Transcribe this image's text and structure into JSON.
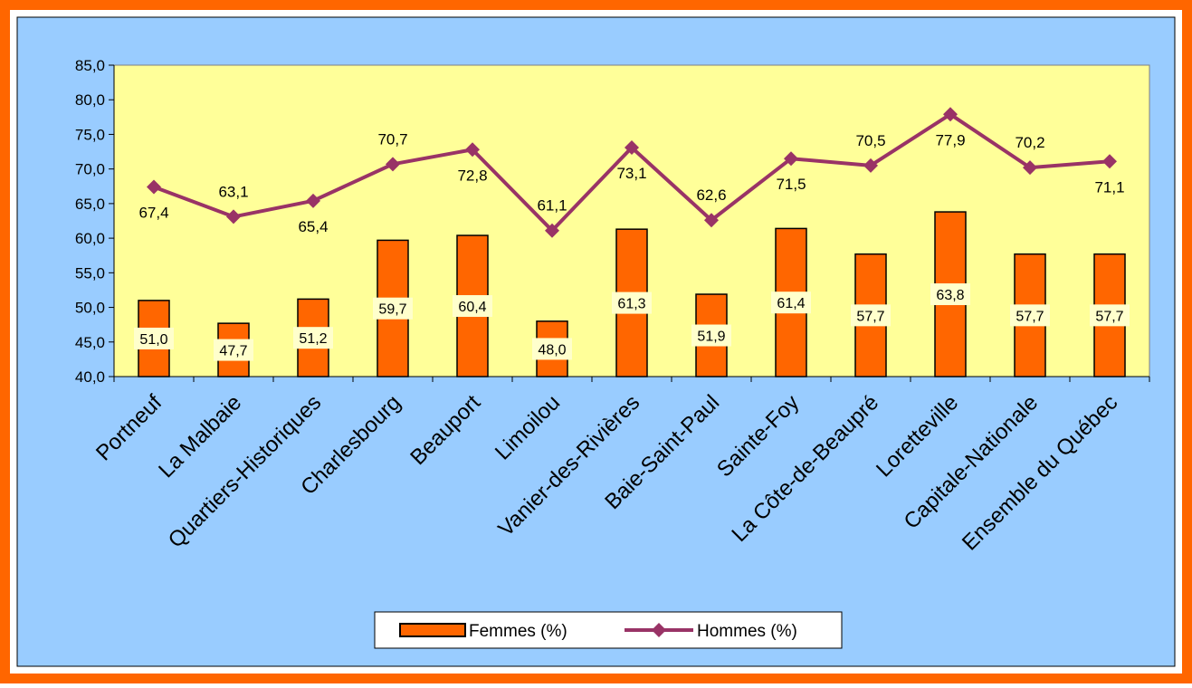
{
  "chart_data": {
    "type": "bar",
    "categories": [
      "Portneuf",
      "La Malbaie",
      "Quartiers-Historiques",
      "Charlesbourg",
      "Beauport",
      "Limoilou",
      "Vanier-des-Rivières",
      "Baie-Saint-Paul",
      "Sainte-Foy",
      "La Côte-de-Beaupré",
      "Loretteville",
      "Capitale-Nationale",
      "Ensemble du Québec"
    ],
    "series": [
      {
        "name": "Femmes (%)",
        "type": "bar",
        "color": "#ff6600",
        "values": [
          51.0,
          47.7,
          51.2,
          59.7,
          60.4,
          48.0,
          61.3,
          51.9,
          61.4,
          57.7,
          63.8,
          57.7,
          57.7
        ],
        "labels": [
          "51,0",
          "47,7",
          "51,2",
          "59,7",
          "60,4",
          "48,0",
          "61,3",
          "51,9",
          "61,4",
          "57,7",
          "63,8",
          "57,7",
          "57,7"
        ]
      },
      {
        "name": "Hommes (%)",
        "type": "line",
        "marker": "diamond",
        "color": "#993366",
        "values": [
          67.4,
          63.1,
          65.4,
          70.7,
          72.8,
          61.1,
          73.1,
          62.6,
          71.5,
          70.5,
          77.9,
          70.2,
          71.1
        ],
        "labels": [
          "67,4",
          "63,1",
          "65,4",
          "70,7",
          "72,8",
          "61,1",
          "73,1",
          "62,6",
          "71,5",
          "70,5",
          "77,9",
          "70,2",
          "71,1"
        ]
      }
    ],
    "ylim": [
      40,
      85
    ],
    "yticks": [
      40,
      45,
      50,
      55,
      60,
      65,
      70,
      75,
      80,
      85
    ],
    "ytick_labels": [
      "40,0",
      "45,0",
      "50,0",
      "55,0",
      "60,0",
      "65,0",
      "70,0",
      "75,0",
      "80,0",
      "85,0"
    ],
    "grid": false,
    "legend_position": "bottom-center",
    "colors": {
      "frame": "#ff6600",
      "background": "#99ccff",
      "plot_area": "#ffff99",
      "label_box": "#ffffcc"
    }
  }
}
